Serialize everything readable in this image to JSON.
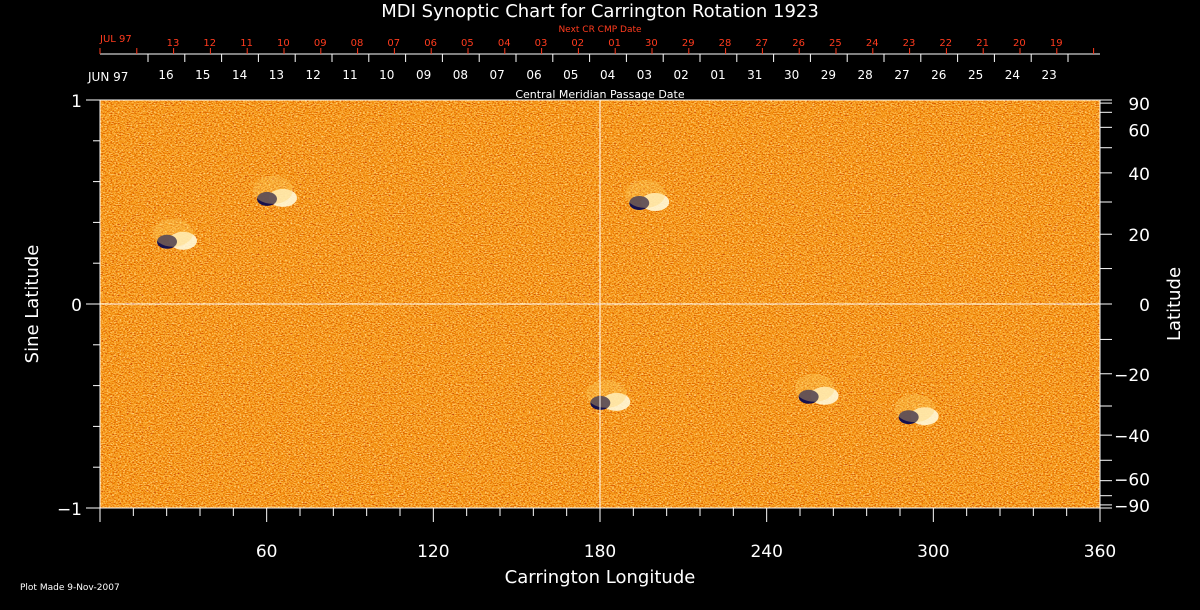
{
  "chart_data": {
    "type": "heatmap",
    "title": "MDI Synoptic Chart for Carrington Rotation 1923",
    "xlabel": "Carrington Longitude",
    "ylabel_left": "Sine Latitude",
    "ylabel_right": "Latitude",
    "xlim": [
      0,
      360
    ],
    "ylim": [
      -1,
      1
    ],
    "x_ticks": [
      60,
      120,
      180,
      240,
      300,
      360
    ],
    "y_ticks_left": [
      1,
      0,
      -1
    ],
    "y_ticks_left_labels": [
      "1",
      "0",
      "−1"
    ],
    "y_ticks_right": [
      90,
      60,
      40,
      20,
      0,
      -20,
      -40,
      -60,
      -90
    ],
    "y_ticks_right_labels": [
      "90",
      "60",
      "40",
      "20",
      "0",
      "−20",
      "−40",
      "−60",
      "−90"
    ],
    "crosshair": {
      "x": 180,
      "y": 0
    },
    "colormap": [
      "#000050",
      "#8b0000",
      "#d22000",
      "#ff6010",
      "#ffb030",
      "#ffffff"
    ],
    "cmp_axis": {
      "label": "Central Meridian Passage Date",
      "month_label": "JUN 97",
      "dates": [
        "16",
        "15",
        "14",
        "13",
        "12",
        "11",
        "10",
        "09",
        "08",
        "07",
        "06",
        "05",
        "04",
        "03",
        "02",
        "01",
        "31",
        "30",
        "29",
        "28",
        "27",
        "26",
        "25",
        "24",
        "23"
      ]
    },
    "next_cmp_axis": {
      "label": "Next CR CMP Date",
      "month_label": "JUL 97",
      "dates": [
        "13",
        "12",
        "11",
        "10",
        "09",
        "08",
        "07",
        "06",
        "05",
        "04",
        "03",
        "02",
        "01",
        "30",
        "29",
        "28",
        "27",
        "26",
        "25",
        "24",
        "23",
        "22",
        "21",
        "20",
        "19"
      ]
    },
    "regions": [
      {
        "lon": 27,
        "sinlat": 0.31,
        "polarity": "mixed"
      },
      {
        "lon": 63,
        "sinlat": 0.52,
        "polarity": "mixed"
      },
      {
        "lon": 197,
        "sinlat": 0.5,
        "polarity": "mixed"
      },
      {
        "lon": 183,
        "sinlat": -0.48,
        "polarity": "mixed"
      },
      {
        "lon": 258,
        "sinlat": -0.45,
        "polarity": "mixed"
      },
      {
        "lon": 294,
        "sinlat": -0.55,
        "polarity": "mixed"
      }
    ]
  },
  "footer": {
    "plot_made": "Plot Made  9-Nov-2007"
  }
}
